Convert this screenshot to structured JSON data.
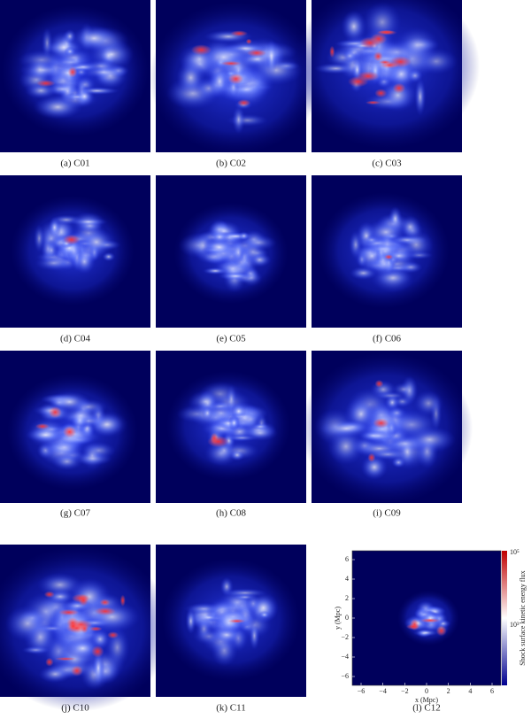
{
  "panels": [
    {
      "caption": "(a) C01"
    },
    {
      "caption": "(b) C02"
    },
    {
      "caption": "(c) C03"
    },
    {
      "caption": "(d) C04"
    },
    {
      "caption": "(e) C05"
    },
    {
      "caption": "(f) C06"
    },
    {
      "caption": "(g) C07"
    },
    {
      "caption": "(h) C08"
    },
    {
      "caption": "(i) C09"
    },
    {
      "caption": "(j) C10"
    },
    {
      "caption": "(k) C11"
    },
    {
      "caption": "(l) C12"
    }
  ],
  "last_panel_axes": {
    "x_label": "x (Mpc)",
    "y_label": "y (Mpc)",
    "x_ticks": [
      "−6",
      "−4",
      "−2",
      "0",
      "2",
      "4",
      "6"
    ],
    "y_ticks": [
      "6",
      "4",
      "2",
      "0",
      "−2",
      "−4",
      "−6"
    ],
    "colorbar_label": "Shock surface kinetic energy flux",
    "colorbar_ticks": [
      "10⁵",
      "10³"
    ]
  }
}
